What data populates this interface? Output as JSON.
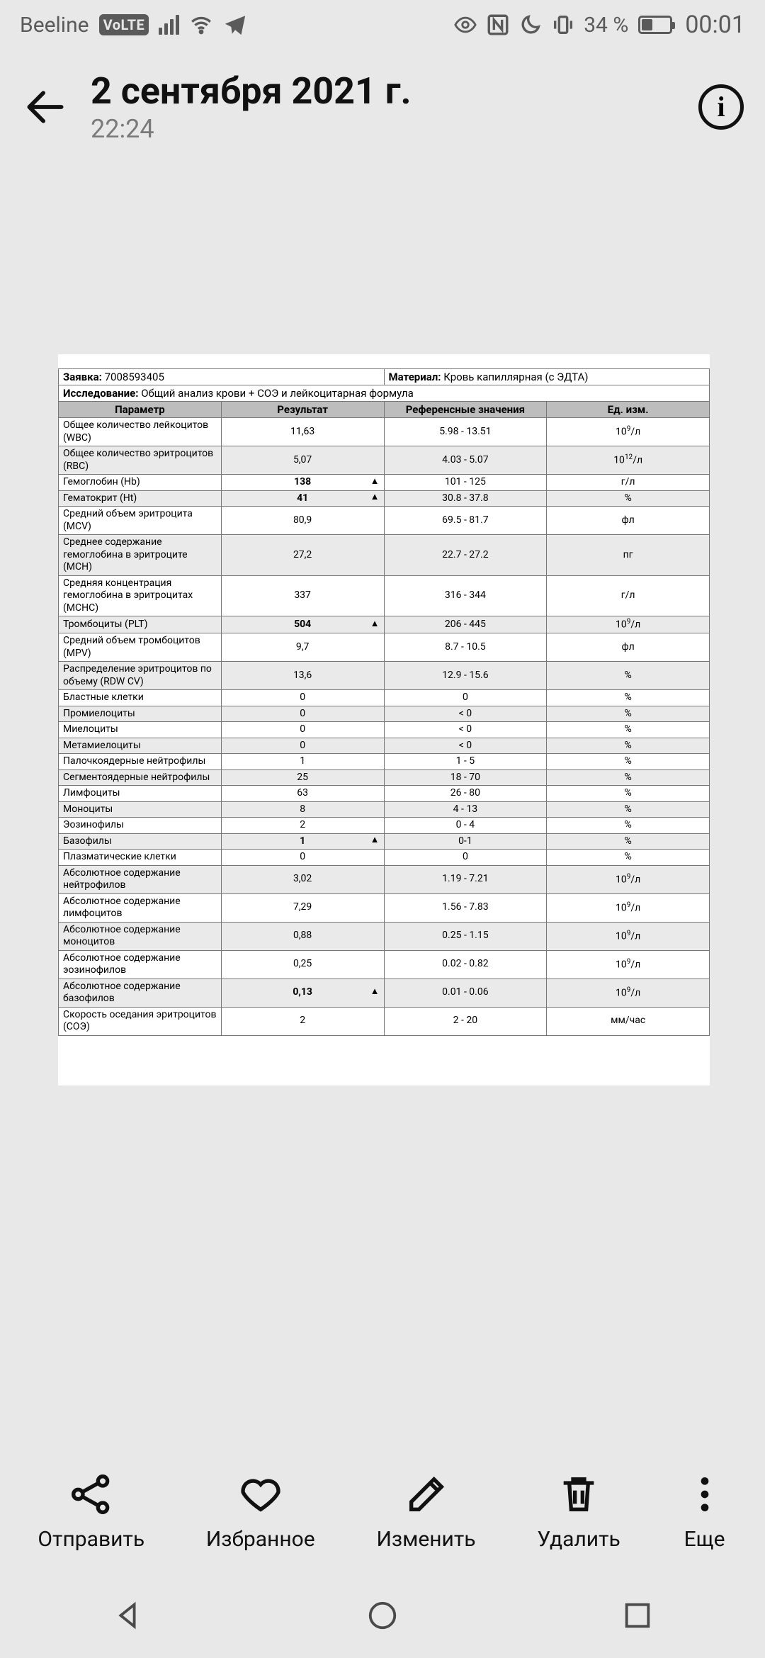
{
  "status": {
    "carrier": "Beeline",
    "volte": "VoLTE",
    "battery": "34 %",
    "clock": "00:01"
  },
  "header": {
    "title": "2 сентября 2021 г.",
    "subtitle": "22:24"
  },
  "doc": {
    "request_label": "Заявка:",
    "request_value": "7008593405",
    "material_label": "Материал:",
    "material_value": "Кровь капиллярная (с ЭДТА)",
    "study_label": "Исследование:",
    "study_value": "Общий анализ крови + СОЭ и лейкоцитарная формула",
    "columns": {
      "param": "Параметр",
      "result": "Результат",
      "ref": "Референсные значения",
      "unit": "Ед. изм."
    },
    "flag_symbol": "▲",
    "rows": [
      {
        "p": "Общее количество лейкоцитов (WBC)",
        "r": "11,63",
        "ref": "5.98 - 13.51",
        "u": "10⁹/л"
      },
      {
        "p": "Общее количество эритроцитов (RBC)",
        "r": "5,07",
        "ref": "4.03 - 5.07",
        "u": "10¹²/л",
        "alt": true
      },
      {
        "p": "Гемоглобин (Hb)",
        "r": "138",
        "ref": "101 - 125",
        "u": "г/л",
        "flag": true,
        "bold": true
      },
      {
        "p": "Гематокрит (Ht)",
        "r": "41",
        "ref": "30.8 - 37.8",
        "u": "%",
        "flag": true,
        "bold": true,
        "alt": true
      },
      {
        "p": "Средний объем эритроцита (MCV)",
        "r": "80,9",
        "ref": "69.5 - 81.7",
        "u": "фл"
      },
      {
        "p": "Среднее содержание гемоглобина в эритроците (MCH)",
        "r": "27,2",
        "ref": "22.7 - 27.2",
        "u": "пг",
        "alt": true
      },
      {
        "p": "Средняя концентрация гемоглобина в эритроцитах (MCHC)",
        "r": "337",
        "ref": "316 - 344",
        "u": "г/л"
      },
      {
        "p": "Тромбоциты (PLT)",
        "r": "504",
        "ref": "206 - 445",
        "u": "10⁹/л",
        "flag": true,
        "bold": true,
        "alt": true
      },
      {
        "p": "Средний объем тромбоцитов (MPV)",
        "r": "9,7",
        "ref": "8.7 - 10.5",
        "u": "фл"
      },
      {
        "p": "Распределение эритроцитов по объему (RDW CV)",
        "r": "13,6",
        "ref": "12.9 - 15.6",
        "u": "%",
        "alt": true
      },
      {
        "p": "Бластные клетки",
        "r": "0",
        "ref": "0",
        "u": "%"
      },
      {
        "p": "Промиелоциты",
        "r": "0",
        "ref": "< 0",
        "u": "%",
        "alt": true
      },
      {
        "p": "Миелоциты",
        "r": "0",
        "ref": "< 0",
        "u": "%"
      },
      {
        "p": "Метамиелоциты",
        "r": "0",
        "ref": "< 0",
        "u": "%",
        "alt": true
      },
      {
        "p": "Палочкоядерные нейтрофилы",
        "r": "1",
        "ref": "1 - 5",
        "u": "%"
      },
      {
        "p": "Сегментоядерные нейтрофилы",
        "r": "25",
        "ref": "18 - 70",
        "u": "%",
        "alt": true
      },
      {
        "p": "Лимфоциты",
        "r": "63",
        "ref": "26 - 80",
        "u": "%"
      },
      {
        "p": "Моноциты",
        "r": "8",
        "ref": "4 - 13",
        "u": "%",
        "alt": true
      },
      {
        "p": "Эозинофилы",
        "r": "2",
        "ref": "0 - 4",
        "u": "%"
      },
      {
        "p": "Базофилы",
        "r": "1",
        "ref": "0-1",
        "u": "%",
        "flag": true,
        "bold": true,
        "alt": true
      },
      {
        "p": "Плазматические клетки",
        "r": "0",
        "ref": "0",
        "u": "%"
      },
      {
        "p": "Абсолютное содержание нейтрофилов",
        "r": "3,02",
        "ref": "1.19 - 7.21",
        "u": "10⁹/л",
        "alt": true
      },
      {
        "p": "Абсолютное содержание лимфоцитов",
        "r": "7,29",
        "ref": "1.56 - 7.83",
        "u": "10⁹/л"
      },
      {
        "p": "Абсолютное содержание моноцитов",
        "r": "0,88",
        "ref": "0.25 - 1.15",
        "u": "10⁹/л",
        "alt": true
      },
      {
        "p": "Абсолютное содержание эозинофилов",
        "r": "0,25",
        "ref": "0.02 - 0.82",
        "u": "10⁹/л"
      },
      {
        "p": "Абсолютное содержание базофилов",
        "r": "0,13",
        "ref": "0.01 - 0.06",
        "u": "10⁹/л",
        "flag": true,
        "bold": true,
        "alt": true
      },
      {
        "p": "Скорость оседания эритроцитов (СОЭ)",
        "r": "2",
        "ref": "2 - 20",
        "u": "мм/час"
      }
    ]
  },
  "toolbar": {
    "send": "Отправить",
    "favorite": "Избранное",
    "edit": "Изменить",
    "delete": "Удалить",
    "more": "Еще"
  }
}
